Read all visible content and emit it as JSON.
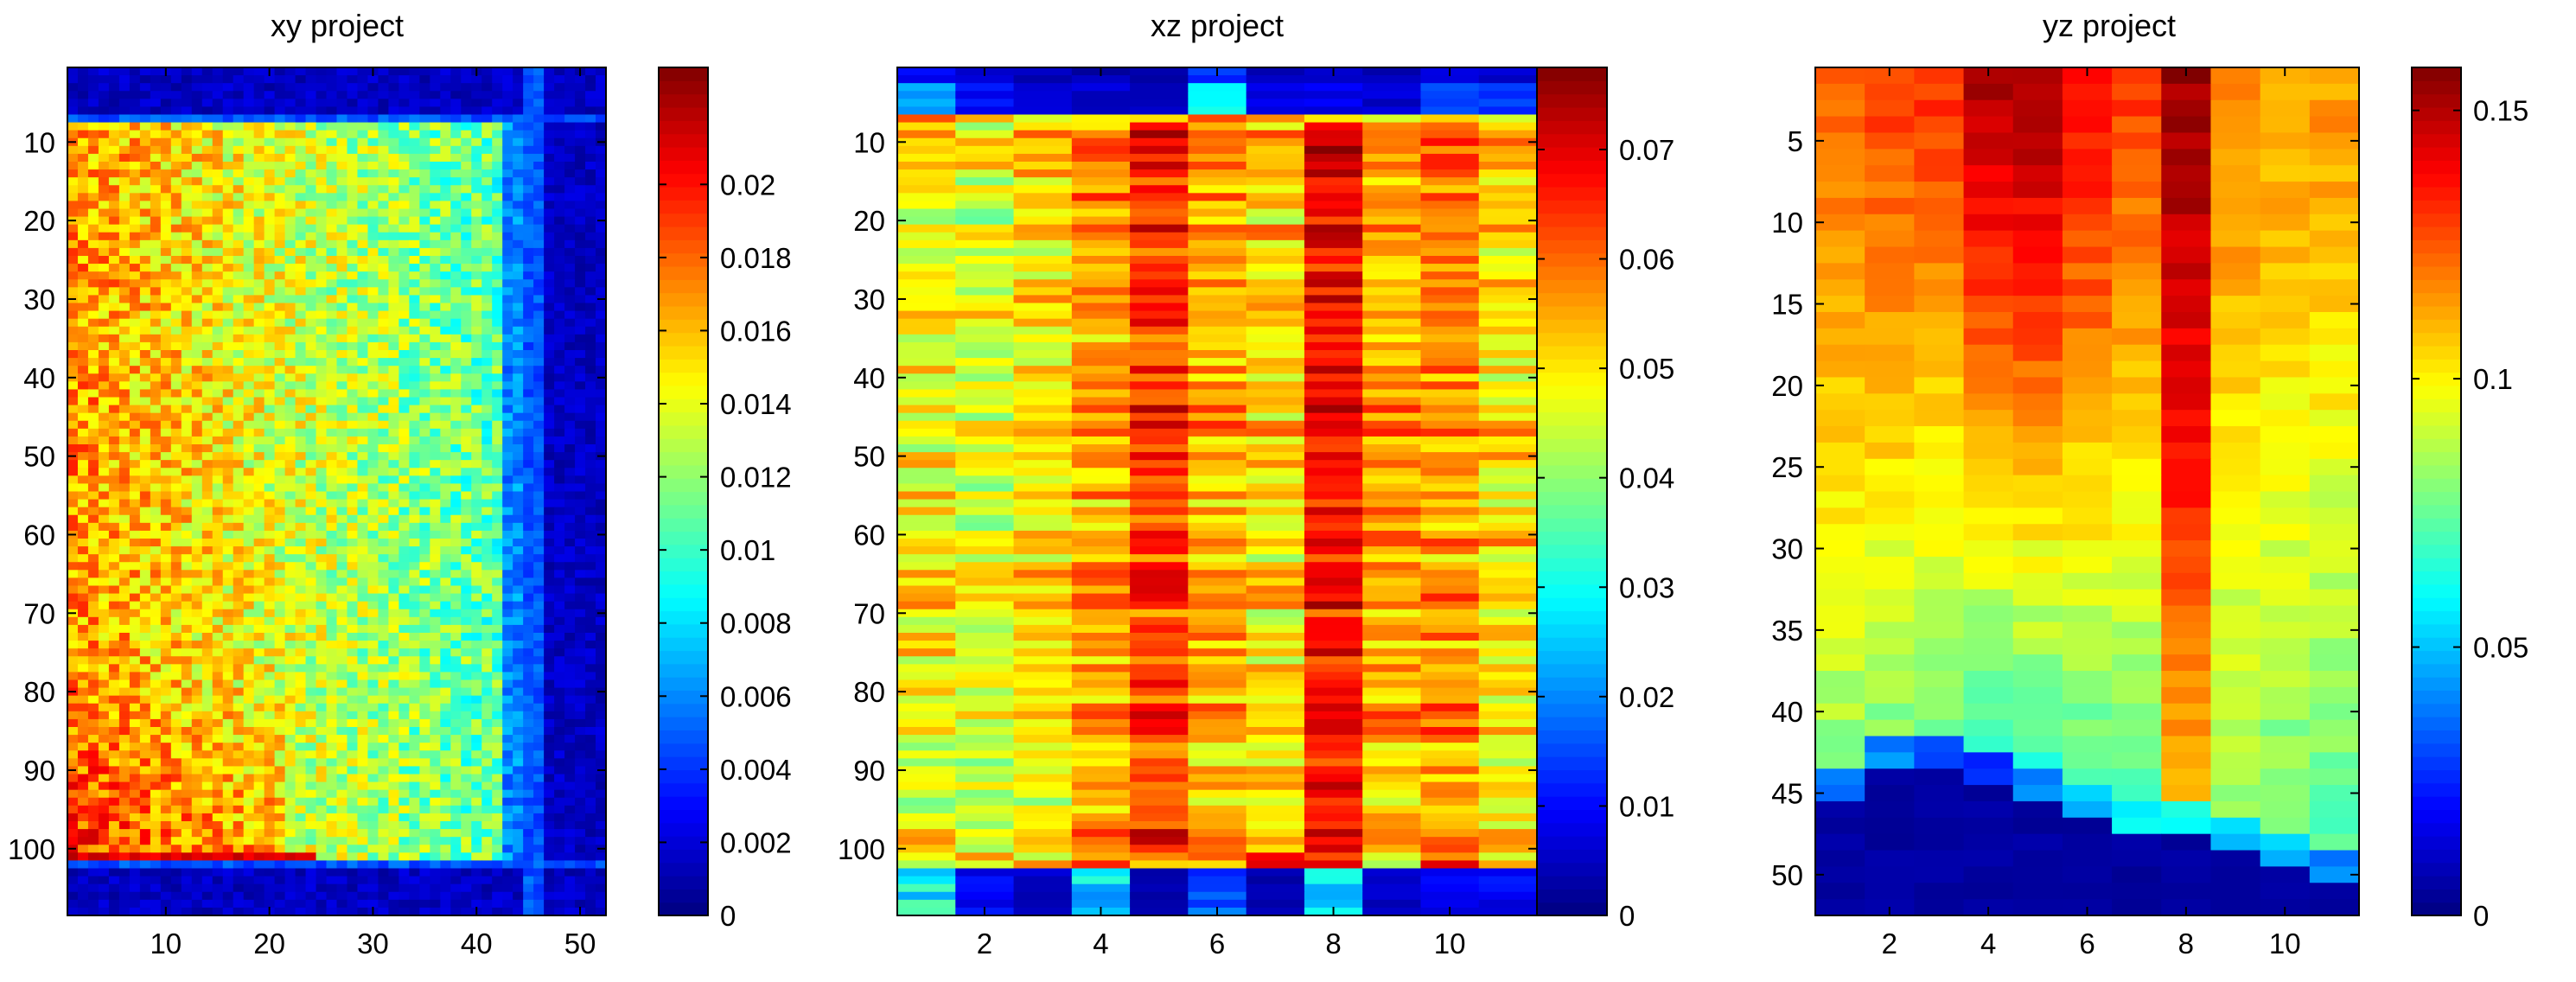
{
  "chart_data": [
    {
      "type": "heatmap",
      "title": "xy project",
      "xlabel": "",
      "ylabel": "",
      "xlim": [
        0.5,
        52.5
      ],
      "ylim": [
        0.5,
        108.5
      ],
      "y_reversed": true,
      "x_ticks": [
        10,
        20,
        30,
        40,
        50
      ],
      "y_ticks": [
        10,
        20,
        30,
        40,
        50,
        60,
        70,
        80,
        90,
        100
      ],
      "colormap": "jet",
      "color_range": [
        0,
        0.0232
      ],
      "colorbar_ticks": [
        "0",
        "0.002",
        "0.004",
        "0.006",
        "0.008",
        "0.01",
        "0.012",
        "0.014",
        "0.016",
        "0.018",
        "0.02"
      ],
      "colorbar_tick_values": [
        0,
        0.002,
        0.004,
        0.006,
        0.008,
        0.01,
        0.012,
        0.014,
        0.016,
        0.018,
        0.02
      ],
      "grid": false,
      "cells": {
        "x_count": 52,
        "y_count": 108,
        "row_values_left_to_right_top_to_bottom": [
          [
            0.004,
            0.003,
            0.003,
            0.002,
            0.002,
            0.002,
            0.002,
            0.002,
            0.002,
            0.002,
            0.002,
            0.002,
            0.002,
            0.002,
            0.002,
            0.002,
            0.002,
            0.002,
            0.002,
            0.002,
            0.002,
            0.002,
            0.002,
            0.002,
            0.002,
            0.002,
            0.002,
            0.002,
            0.002,
            0.002,
            0.002,
            0.002,
            0.002,
            0.002,
            0.002,
            0.002,
            0.002,
            0.002,
            0.002,
            0.002,
            0.002,
            0.002,
            0.002,
            0.002,
            0.002,
            0.001,
            0.001,
            0.001,
            0.001,
            0.001,
            0.001,
            0.001
          ]
        ],
        "profile": {
          "border_top_rows": 7,
          "border_bottom_from_row": 102,
          "right_edge_column": 44,
          "interior_left_value": 0.017,
          "interior_mid_value": 0.0135,
          "interior_right_value": 0.0105,
          "edge_value": 0.006,
          "outside_value": 0.0015,
          "lower_left_boost": 0.0025
        }
      }
    },
    {
      "type": "heatmap",
      "title": "xz project",
      "xlabel": "",
      "ylabel": "",
      "xlim": [
        0.5,
        11.5
      ],
      "ylim": [
        0.5,
        108.5
      ],
      "y_reversed": true,
      "x_ticks": [
        2,
        4,
        6,
        8,
        10
      ],
      "y_ticks": [
        10,
        20,
        30,
        40,
        50,
        60,
        70,
        80,
        90,
        100
      ],
      "colormap": "jet",
      "color_range": [
        0,
        0.0775
      ],
      "colorbar_ticks": [
        "0",
        "0.01",
        "0.02",
        "0.03",
        "0.04",
        "0.05",
        "0.06",
        "0.07"
      ],
      "colorbar_tick_values": [
        0,
        0.01,
        0.02,
        0.03,
        0.04,
        0.05,
        0.06,
        0.07
      ],
      "grid": false,
      "cells": {
        "x_count": 11,
        "y_count": 108,
        "column_means": [
          0.048,
          0.046,
          0.05,
          0.056,
          0.064,
          0.055,
          0.052,
          0.068,
          0.055,
          0.057,
          0.05
        ],
        "top_rows_values": [
          0.02,
          0.008,
          0.006,
          0.004,
          0.004,
          0.028,
          0.006,
          0.006,
          0.004,
          0.012,
          0.012
        ],
        "bottom_rows_values": [
          0.03,
          0.01,
          0.006,
          0.028,
          0.004,
          0.018,
          0.004,
          0.026,
          0.006,
          0.01,
          0.01
        ],
        "valid_rows": [
          8,
          100
        ]
      }
    },
    {
      "type": "heatmap",
      "title": "yz project",
      "xlabel": "",
      "ylabel": "",
      "xlim": [
        0.5,
        11.5
      ],
      "ylim": [
        0.5,
        52.5
      ],
      "y_reversed": true,
      "x_ticks": [
        2,
        4,
        6,
        8,
        10
      ],
      "y_ticks": [
        5,
        10,
        15,
        20,
        25,
        30,
        35,
        40,
        45,
        50
      ],
      "colormap": "jet",
      "color_range": [
        0,
        0.158
      ],
      "colorbar_ticks": [
        "0",
        "0.05",
        "0.1",
        "0.15"
      ],
      "colorbar_tick_values": [
        0,
        0.05,
        0.1,
        0.15
      ],
      "grid": false,
      "cells": {
        "x_count": 11,
        "y_count": 52,
        "column_top_values": [
          0.125,
          0.128,
          0.13,
          0.15,
          0.152,
          0.14,
          0.13,
          0.155,
          0.118,
          0.115,
          0.115
        ],
        "column_bottom_values": [
          0.08,
          0.08,
          0.075,
          0.065,
          0.065,
          0.07,
          0.07,
          0.11,
          0.08,
          0.075,
          0.07
        ],
        "column_cutoff_rows": [
          45,
          43,
          43,
          44,
          45,
          46,
          47,
          47,
          48,
          49,
          50
        ],
        "edge_values": [
          0.035,
          0.04,
          0.03,
          0.025,
          0.04,
          0.05,
          0.06,
          0.06,
          0.05,
          0.05,
          0.04
        ],
        "empty_value": 0.003
      }
    }
  ]
}
